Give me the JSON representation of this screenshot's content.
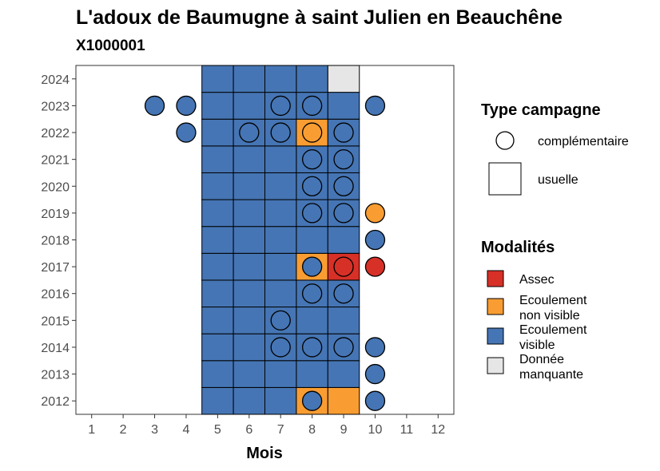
{
  "chart_data": {
    "type": "heatmap",
    "title": "L'adoux de Baumugne à saint Julien en Beauchêne",
    "subtitle": "X1000001",
    "xlabel": "Mois",
    "ylabel": "",
    "x_ticks": [
      1,
      2,
      3,
      4,
      5,
      6,
      7,
      8,
      9,
      10,
      11,
      12
    ],
    "y_ticks": [
      2012,
      2013,
      2014,
      2015,
      2016,
      2017,
      2018,
      2019,
      2020,
      2021,
      2022,
      2023,
      2024
    ],
    "xlim": [
      0.5,
      12.5
    ],
    "ylim": [
      2011.5,
      2024.5
    ],
    "grid": false,
    "legend_position": "right",
    "legend_campagne": {
      "title": "Type campagne",
      "items": [
        {
          "shape": "circle",
          "label": "complémentaire"
        },
        {
          "shape": "square",
          "label": "usuelle"
        }
      ]
    },
    "legend_modalites": {
      "title": "Modalités",
      "items": [
        {
          "key": "assec",
          "label_lines": [
            "Assec"
          ],
          "color": "#d73027"
        },
        {
          "key": "nonvisible",
          "label_lines": [
            "Ecoulement",
            "non visible"
          ],
          "color": "#f99d32"
        },
        {
          "key": "visible",
          "label_lines": [
            "Ecoulement",
            "visible"
          ],
          "color": "#4575b4"
        },
        {
          "key": "manquante",
          "label_lines": [
            "Donnée",
            "manquante"
          ],
          "color": "#e6e6e6"
        }
      ]
    },
    "usuelle": [
      {
        "year": 2012,
        "month": 5,
        "m": "visible"
      },
      {
        "year": 2012,
        "month": 6,
        "m": "visible"
      },
      {
        "year": 2012,
        "month": 7,
        "m": "visible"
      },
      {
        "year": 2012,
        "month": 8,
        "m": "nonvisible"
      },
      {
        "year": 2012,
        "month": 9,
        "m": "nonvisible"
      },
      {
        "year": 2013,
        "month": 5,
        "m": "visible"
      },
      {
        "year": 2013,
        "month": 6,
        "m": "visible"
      },
      {
        "year": 2013,
        "month": 7,
        "m": "visible"
      },
      {
        "year": 2013,
        "month": 8,
        "m": "visible"
      },
      {
        "year": 2013,
        "month": 9,
        "m": "visible"
      },
      {
        "year": 2014,
        "month": 5,
        "m": "visible"
      },
      {
        "year": 2014,
        "month": 6,
        "m": "visible"
      },
      {
        "year": 2014,
        "month": 7,
        "m": "visible"
      },
      {
        "year": 2014,
        "month": 8,
        "m": "visible"
      },
      {
        "year": 2014,
        "month": 9,
        "m": "visible"
      },
      {
        "year": 2015,
        "month": 5,
        "m": "visible"
      },
      {
        "year": 2015,
        "month": 6,
        "m": "visible"
      },
      {
        "year": 2015,
        "month": 7,
        "m": "visible"
      },
      {
        "year": 2015,
        "month": 8,
        "m": "visible"
      },
      {
        "year": 2015,
        "month": 9,
        "m": "visible"
      },
      {
        "year": 2016,
        "month": 5,
        "m": "visible"
      },
      {
        "year": 2016,
        "month": 6,
        "m": "visible"
      },
      {
        "year": 2016,
        "month": 7,
        "m": "visible"
      },
      {
        "year": 2016,
        "month": 8,
        "m": "visible"
      },
      {
        "year": 2016,
        "month": 9,
        "m": "visible"
      },
      {
        "year": 2017,
        "month": 5,
        "m": "visible"
      },
      {
        "year": 2017,
        "month": 6,
        "m": "visible"
      },
      {
        "year": 2017,
        "month": 7,
        "m": "visible"
      },
      {
        "year": 2017,
        "month": 8,
        "m": "nonvisible"
      },
      {
        "year": 2017,
        "month": 9,
        "m": "assec"
      },
      {
        "year": 2018,
        "month": 5,
        "m": "visible"
      },
      {
        "year": 2018,
        "month": 6,
        "m": "visible"
      },
      {
        "year": 2018,
        "month": 7,
        "m": "visible"
      },
      {
        "year": 2018,
        "month": 8,
        "m": "visible"
      },
      {
        "year": 2018,
        "month": 9,
        "m": "visible"
      },
      {
        "year": 2019,
        "month": 5,
        "m": "visible"
      },
      {
        "year": 2019,
        "month": 6,
        "m": "visible"
      },
      {
        "year": 2019,
        "month": 7,
        "m": "visible"
      },
      {
        "year": 2019,
        "month": 8,
        "m": "visible"
      },
      {
        "year": 2019,
        "month": 9,
        "m": "visible"
      },
      {
        "year": 2020,
        "month": 5,
        "m": "visible"
      },
      {
        "year": 2020,
        "month": 6,
        "m": "visible"
      },
      {
        "year": 2020,
        "month": 7,
        "m": "visible"
      },
      {
        "year": 2020,
        "month": 8,
        "m": "visible"
      },
      {
        "year": 2020,
        "month": 9,
        "m": "visible"
      },
      {
        "year": 2021,
        "month": 5,
        "m": "visible"
      },
      {
        "year": 2021,
        "month": 6,
        "m": "visible"
      },
      {
        "year": 2021,
        "month": 7,
        "m": "visible"
      },
      {
        "year": 2021,
        "month": 8,
        "m": "visible"
      },
      {
        "year": 2021,
        "month": 9,
        "m": "visible"
      },
      {
        "year": 2022,
        "month": 5,
        "m": "visible"
      },
      {
        "year": 2022,
        "month": 6,
        "m": "visible"
      },
      {
        "year": 2022,
        "month": 7,
        "m": "visible"
      },
      {
        "year": 2022,
        "month": 8,
        "m": "nonvisible"
      },
      {
        "year": 2022,
        "month": 9,
        "m": "visible"
      },
      {
        "year": 2023,
        "month": 5,
        "m": "visible"
      },
      {
        "year": 2023,
        "month": 6,
        "m": "visible"
      },
      {
        "year": 2023,
        "month": 7,
        "m": "visible"
      },
      {
        "year": 2023,
        "month": 8,
        "m": "visible"
      },
      {
        "year": 2023,
        "month": 9,
        "m": "visible"
      },
      {
        "year": 2024,
        "month": 5,
        "m": "visible"
      },
      {
        "year": 2024,
        "month": 6,
        "m": "visible"
      },
      {
        "year": 2024,
        "month": 7,
        "m": "visible"
      },
      {
        "year": 2024,
        "month": 8,
        "m": "visible"
      },
      {
        "year": 2024,
        "month": 9,
        "m": "manquante"
      }
    ],
    "complementaire": [
      {
        "year": 2023,
        "month": 3,
        "m": "visible"
      },
      {
        "year": 2023,
        "month": 4,
        "m": "visible"
      },
      {
        "year": 2023,
        "month": 7,
        "m": "visible"
      },
      {
        "year": 2023,
        "month": 8,
        "m": "visible"
      },
      {
        "year": 2023,
        "month": 10,
        "m": "visible"
      },
      {
        "year": 2022,
        "month": 4,
        "m": "visible"
      },
      {
        "year": 2022,
        "month": 6,
        "m": "visible"
      },
      {
        "year": 2022,
        "month": 7,
        "m": "visible"
      },
      {
        "year": 2022,
        "month": 8,
        "m": "nonvisible"
      },
      {
        "year": 2022,
        "month": 9,
        "m": "visible"
      },
      {
        "year": 2021,
        "month": 8,
        "m": "visible"
      },
      {
        "year": 2021,
        "month": 9,
        "m": "visible"
      },
      {
        "year": 2020,
        "month": 8,
        "m": "visible"
      },
      {
        "year": 2020,
        "month": 9,
        "m": "visible"
      },
      {
        "year": 2019,
        "month": 8,
        "m": "visible"
      },
      {
        "year": 2019,
        "month": 9,
        "m": "visible"
      },
      {
        "year": 2019,
        "month": 10,
        "m": "nonvisible"
      },
      {
        "year": 2018,
        "month": 10,
        "m": "visible"
      },
      {
        "year": 2017,
        "month": 8,
        "m": "visible"
      },
      {
        "year": 2017,
        "month": 9,
        "m": "assec"
      },
      {
        "year": 2017,
        "month": 10,
        "m": "assec"
      },
      {
        "year": 2016,
        "month": 8,
        "m": "visible"
      },
      {
        "year": 2016,
        "month": 9,
        "m": "visible"
      },
      {
        "year": 2015,
        "month": 7,
        "m": "visible"
      },
      {
        "year": 2014,
        "month": 7,
        "m": "visible"
      },
      {
        "year": 2014,
        "month": 8,
        "m": "visible"
      },
      {
        "year": 2014,
        "month": 9,
        "m": "visible"
      },
      {
        "year": 2014,
        "month": 10,
        "m": "visible"
      },
      {
        "year": 2013,
        "month": 10,
        "m": "visible"
      },
      {
        "year": 2012,
        "month": 8,
        "m": "visible"
      },
      {
        "year": 2012,
        "month": 10,
        "m": "visible"
      }
    ]
  }
}
